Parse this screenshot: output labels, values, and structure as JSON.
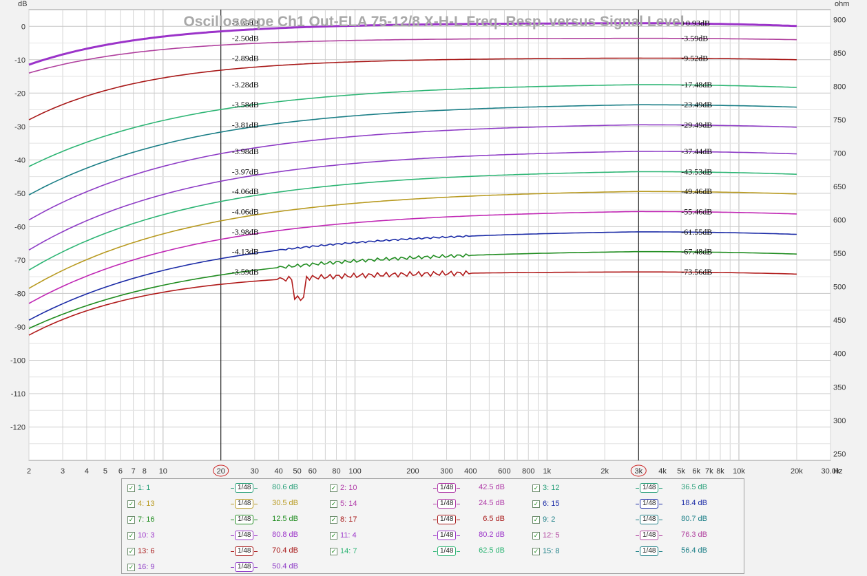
{
  "chart_data": {
    "type": "line",
    "title": "Oscilloscope Ch1 Out-ELA 75-12/8 X-H-L Freq. Resp. versus Signal Level",
    "x_unit": "Hz",
    "y_unit_left": "dB",
    "y_unit_right": "ohm",
    "x_scale": "log",
    "xlim": [
      2,
      30000
    ],
    "ylim": [
      -130,
      5
    ],
    "y2lim": [
      240,
      915
    ],
    "grid": true,
    "x_ticks": [
      {
        "v": 2,
        "l": "2"
      },
      {
        "v": 3,
        "l": "3"
      },
      {
        "v": 4,
        "l": "4"
      },
      {
        "v": 5,
        "l": "5"
      },
      {
        "v": 6,
        "l": "6"
      },
      {
        "v": 7,
        "l": "7"
      },
      {
        "v": 8,
        "l": "8"
      },
      {
        "v": 10,
        "l": "10"
      },
      {
        "v": 20,
        "l": "20"
      },
      {
        "v": 30,
        "l": "30"
      },
      {
        "v": 40,
        "l": "40"
      },
      {
        "v": 50,
        "l": "50"
      },
      {
        "v": 60,
        "l": "60"
      },
      {
        "v": 80,
        "l": "80"
      },
      {
        "v": 100,
        "l": "100"
      },
      {
        "v": 200,
        "l": "200"
      },
      {
        "v": 300,
        "l": "300"
      },
      {
        "v": 400,
        "l": "400"
      },
      {
        "v": 600,
        "l": "600"
      },
      {
        "v": 800,
        "l": "800"
      },
      {
        "v": 1000,
        "l": "1k"
      },
      {
        "v": 2000,
        "l": "2k"
      },
      {
        "v": 3000,
        "l": "3k"
      },
      {
        "v": 4000,
        "l": "4k"
      },
      {
        "v": 5000,
        "l": "5k"
      },
      {
        "v": 6000,
        "l": "6k"
      },
      {
        "v": 7000,
        "l": "7k"
      },
      {
        "v": 8000,
        "l": "8k"
      },
      {
        "v": 10000,
        "l": "10k"
      },
      {
        "v": 20000,
        "l": "20k"
      },
      {
        "v": 30000,
        "l": "30.0k"
      }
    ],
    "y_ticks": [
      0,
      -10,
      -20,
      -30,
      -40,
      -50,
      -60,
      -70,
      -80,
      -90,
      -100,
      -110,
      -120
    ],
    "y2_ticks": [
      900,
      850,
      800,
      750,
      700,
      650,
      600,
      550,
      500,
      450,
      400,
      350,
      300,
      250
    ],
    "cursors": [
      {
        "x": 20,
        "label": "20"
      },
      {
        "x": 3000,
        "label": "3k"
      }
    ],
    "series": [
      {
        "name": "1: 1",
        "color": "#9b33c9",
        "start": -11.5,
        "plateau": 0.93,
        "label_at_20": "-2.35dB",
        "label_at_3k": "+0.93dB",
        "end": 0.1
      },
      {
        "name": "2: 10",
        "color": "#b0409e",
        "start": -14,
        "plateau": -3.59,
        "label_at_20": "-2.50dB",
        "label_at_3k": "-3.59dB",
        "end": -4.0
      },
      {
        "name": "3: 12",
        "color": "#a81818",
        "start": -28,
        "plateau": -9.52,
        "label_at_20": "-2.89dB",
        "label_at_3k": "-9.52dB",
        "end": -10.0
      },
      {
        "name": "4: 13",
        "color": "#2db574",
        "start": -42,
        "plateau": -17.48,
        "label_at_20": "-3.28dB",
        "label_at_3k": "-17.48dB",
        "end": -18.3
      },
      {
        "name": "5: 14",
        "color": "#1a7e86",
        "start": -50.5,
        "plateau": -23.49,
        "label_at_20": "-3.58dB",
        "label_at_3k": "-23.49dB",
        "end": -24.2
      },
      {
        "name": "6: 15",
        "color": "#8e3cc6",
        "start": -58,
        "plateau": -29.49,
        "label_at_20": "-3.81dB",
        "label_at_3k": "-29.49dB",
        "end": -30.2
      },
      {
        "name": "7: 16",
        "color": "#8e3cc6",
        "start": -67,
        "plateau": -37.44,
        "label_at_20": "-3.98dB",
        "label_at_3k": "-37.44dB",
        "end": -38.2
      },
      {
        "name": "8: 17",
        "color": "#2db574",
        "start": -73,
        "plateau": -43.53,
        "label_at_20": "-3.97dB",
        "label_at_3k": "-43.53dB",
        "end": -44.3
      },
      {
        "name": "9: 2",
        "color": "#b89a20",
        "start": -78.5,
        "plateau": -49.46,
        "label_at_20": "-4.06dB",
        "label_at_3k": "-49.46dB",
        "end": -50.2
      },
      {
        "name": "10: 3",
        "color": "#c027b4",
        "start": -83,
        "plateau": -55.46,
        "label_at_20": "-4.06dB",
        "label_at_3k": "-55.46dB",
        "end": -56.2
      },
      {
        "name": "11: 4",
        "color": "#1a2aa6",
        "start": -88,
        "plateau": -61.55,
        "label_at_20": "-3.98dB",
        "label_at_3k": "-61.55dB",
        "end": -62.3
      },
      {
        "name": "12: 5",
        "color": "#1f8c1f",
        "start": -90.5,
        "plateau": -67.48,
        "label_at_20": "-4.13dB",
        "label_at_3k": "-67.48dB",
        "end": -68.2
      },
      {
        "name": "13: 6",
        "color": "#b01a1a",
        "start": -92.5,
        "plateau": -73.56,
        "label_at_20": "-3.59dB",
        "label_at_3k": "-73.56dB",
        "end": -74.2
      }
    ]
  },
  "legend": {
    "check": "✓",
    "smooth": "1/48",
    "items": [
      {
        "name": "1: 1",
        "value": "80.6 dB",
        "color": "#2aa07a"
      },
      {
        "name": "2: 10",
        "value": "42.5 dB",
        "color": "#b03aa8"
      },
      {
        "name": "3: 12",
        "value": "36.5 dB",
        "color": "#2aa07a"
      },
      {
        "name": "4: 13",
        "value": "30.5 dB",
        "color": "#b89a20"
      },
      {
        "name": "5: 14",
        "value": "24.5 dB",
        "color": "#b03aa8"
      },
      {
        "name": "6: 15",
        "value": "18.4 dB",
        "color": "#1a2aa6"
      },
      {
        "name": "7: 16",
        "value": "12.5 dB",
        "color": "#1f8c1f"
      },
      {
        "name": "8: 17",
        "value": "6.5 dB",
        "color": "#a81818"
      },
      {
        "name": "9: 2",
        "value": "80.7 dB",
        "color": "#1a7e86"
      },
      {
        "name": "10: 3",
        "value": "80.8 dB",
        "color": "#9b33c9"
      },
      {
        "name": "11: 4",
        "value": "80.2 dB",
        "color": "#9b33c9"
      },
      {
        "name": "12: 5",
        "value": "76.3 dB",
        "color": "#b0409e"
      },
      {
        "name": "13: 6",
        "value": "70.4 dB",
        "color": "#a81818"
      },
      {
        "name": "14: 7",
        "value": "62.5 dB",
        "color": "#2db574"
      },
      {
        "name": "15: 8",
        "value": "56.4 dB",
        "color": "#1a7e86"
      },
      {
        "name": "16: 9",
        "value": "50.4 dB",
        "color": "#8e3cc6"
      }
    ]
  }
}
